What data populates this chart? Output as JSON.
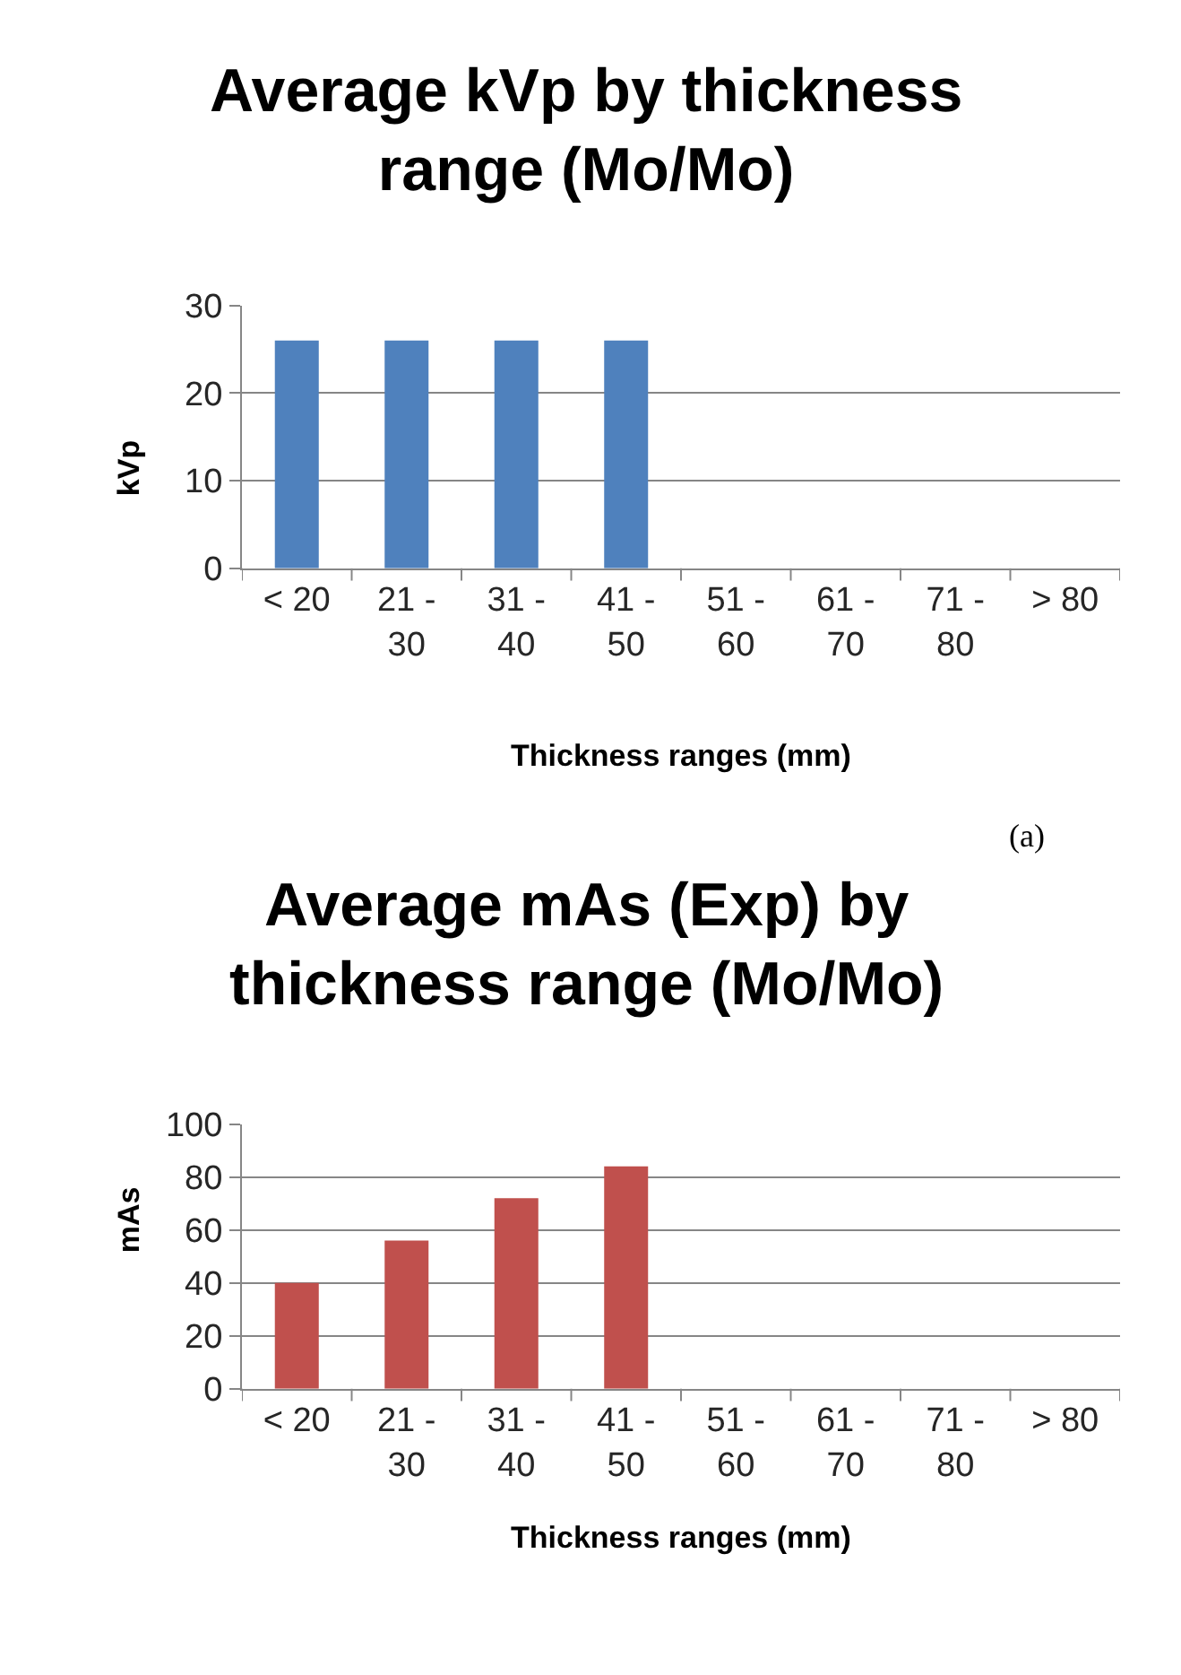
{
  "chart_data": [
    {
      "type": "bar",
      "title": "Average kVp by thickness range (Mo/Mo)",
      "xlabel": "Thickness ranges (mm)",
      "ylabel": "kVp",
      "categories": [
        "< 20",
        "21 - 30",
        "31 - 40",
        "41 - 50",
        "51 - 60",
        "61 - 70",
        "71 - 80",
        "> 80"
      ],
      "values": [
        26,
        26,
        26,
        26,
        null,
        null,
        null,
        null
      ],
      "color": "#4f81bd",
      "ylim": [
        0,
        30
      ],
      "yticks": [
        0,
        10,
        20,
        30
      ],
      "grid": "y",
      "legend": false,
      "annotations": [
        "(a)"
      ]
    },
    {
      "type": "bar",
      "title": "Average mAs (Exp) by thickness range (Mo/Mo)",
      "xlabel": "Thickness ranges (mm)",
      "ylabel": "mAs",
      "categories": [
        "< 20",
        "21 - 30",
        "31 - 40",
        "41 - 50",
        "51 - 60",
        "61 - 70",
        "71 - 80",
        "> 80"
      ],
      "values": [
        40,
        56,
        72,
        84,
        null,
        null,
        null,
        null
      ],
      "color": "#c0504d",
      "ylim": [
        0,
        100
      ],
      "yticks": [
        0,
        20,
        40,
        60,
        80,
        100
      ],
      "grid": "y",
      "legend": false
    }
  ]
}
